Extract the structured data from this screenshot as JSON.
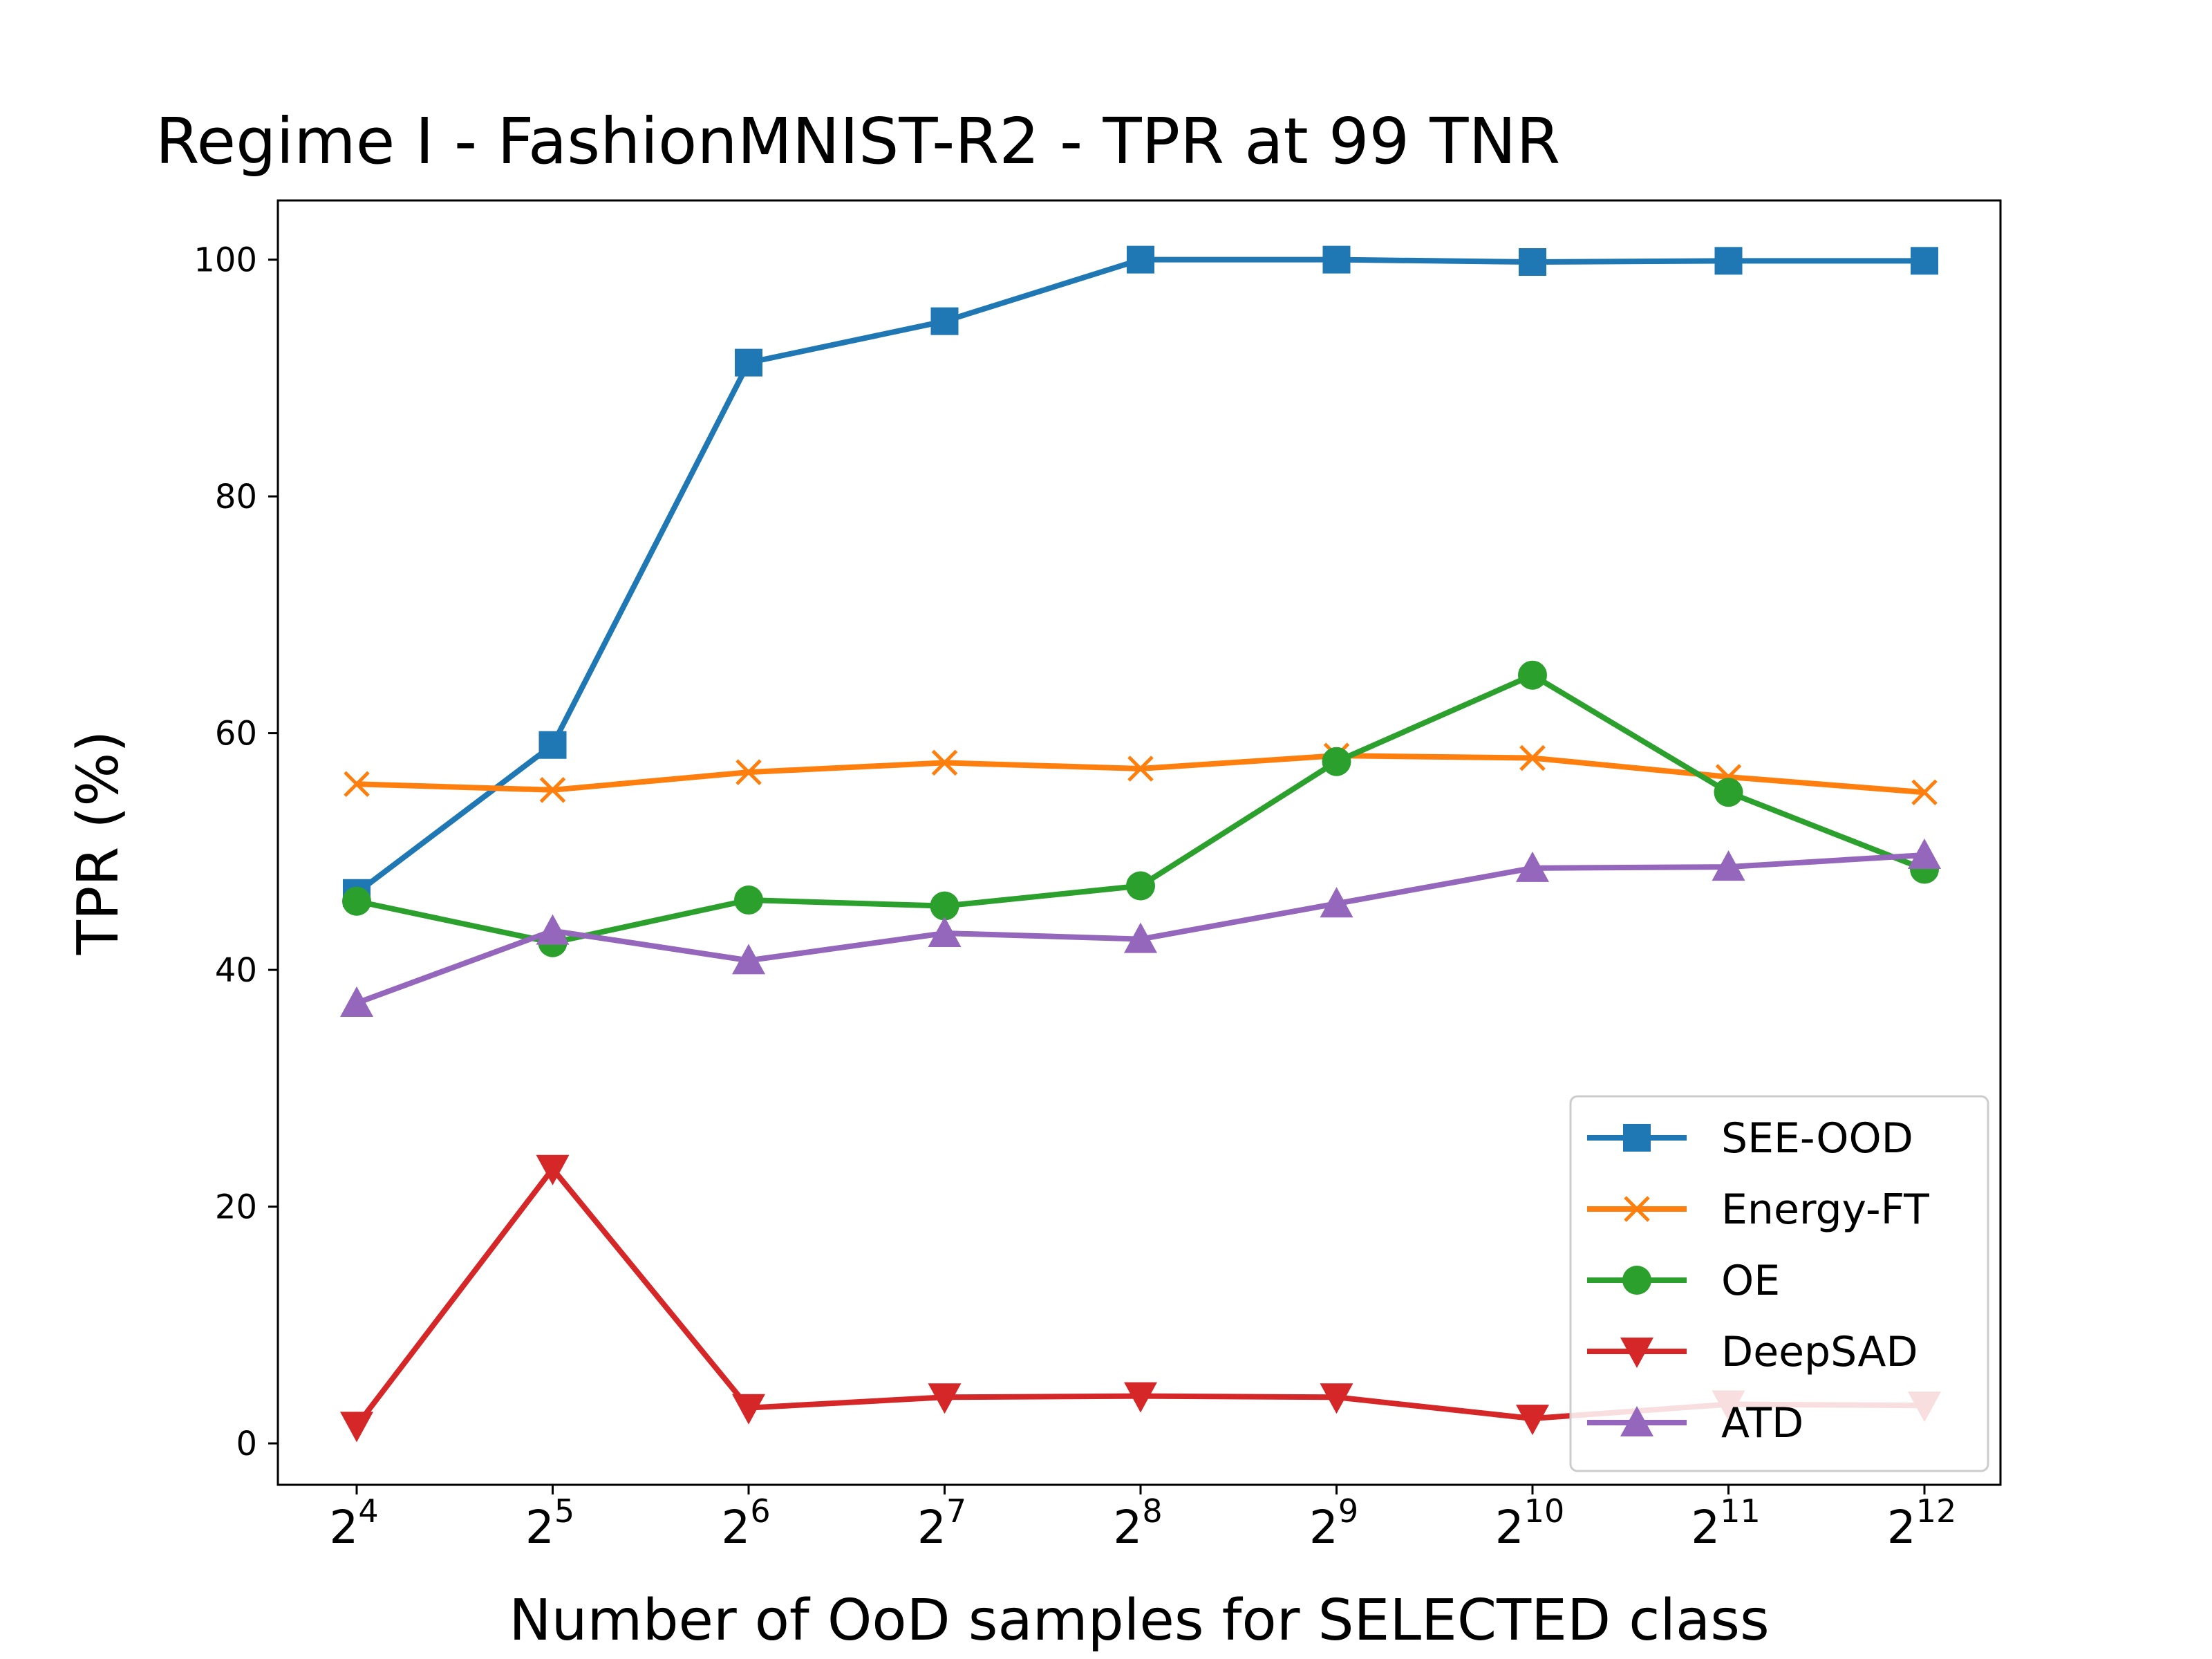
{
  "chart_data": {
    "type": "line",
    "title": "Regime I - FashionMNIST-R2 - TPR at 99 TNR",
    "xlabel": "Number of OoD samples for SELECTED class",
    "ylabel": "TPR (%)",
    "x_base": "2",
    "x_exponents": [
      "4",
      "5",
      "6",
      "7",
      "8",
      "9",
      "10",
      "11",
      "12"
    ],
    "x": [
      16,
      32,
      64,
      128,
      256,
      512,
      1024,
      2048,
      4096
    ],
    "x_scale": "log2",
    "ylim": [
      -3.5,
      105
    ],
    "yticks": [
      0,
      20,
      40,
      60,
      80,
      100
    ],
    "grid": false,
    "legend_position": "lower-right",
    "series": [
      {
        "name": "SEE-OOD",
        "color": "#1f77b4",
        "marker": "square",
        "values": [
          46.5,
          59.0,
          91.3,
          94.8,
          100.0,
          100.0,
          99.8,
          99.9,
          99.9
        ]
      },
      {
        "name": "Energy-FT",
        "color": "#ff7f0e",
        "marker": "x",
        "values": [
          55.7,
          55.2,
          56.7,
          57.5,
          57.0,
          58.1,
          57.9,
          56.3,
          55.0
        ]
      },
      {
        "name": "OE",
        "color": "#2ca02c",
        "marker": "circle",
        "values": [
          45.8,
          42.3,
          45.9,
          45.4,
          47.1,
          57.6,
          64.9,
          55.0,
          48.5
        ]
      },
      {
        "name": "DeepSAD",
        "color": "#d62728",
        "marker": "triangle-down",
        "values": [
          1.5,
          23.2,
          3.0,
          3.9,
          4.0,
          3.9,
          2.1,
          3.3,
          3.2
        ]
      },
      {
        "name": "ATD",
        "color": "#9467bd",
        "marker": "triangle-up",
        "values": [
          37.2,
          43.3,
          40.8,
          43.1,
          42.6,
          45.6,
          48.6,
          48.7,
          49.7
        ]
      }
    ]
  }
}
